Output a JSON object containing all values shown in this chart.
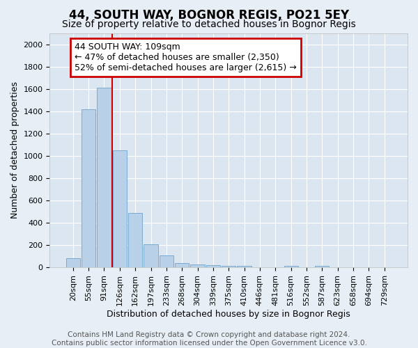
{
  "title1": "44, SOUTH WAY, BOGNOR REGIS, PO21 5EY",
  "title2": "Size of property relative to detached houses in Bognor Regis",
  "xlabel": "Distribution of detached houses by size in Bognor Regis",
  "ylabel": "Number of detached properties",
  "categories": [
    "20sqm",
    "55sqm",
    "91sqm",
    "126sqm",
    "162sqm",
    "197sqm",
    "233sqm",
    "268sqm",
    "304sqm",
    "339sqm",
    "375sqm",
    "410sqm",
    "446sqm",
    "481sqm",
    "516sqm",
    "552sqm",
    "587sqm",
    "623sqm",
    "658sqm",
    "694sqm",
    "729sqm"
  ],
  "values": [
    80,
    1415,
    1610,
    1050,
    490,
    205,
    105,
    40,
    25,
    18,
    10,
    10,
    0,
    0,
    10,
    0,
    10,
    0,
    0,
    0,
    0
  ],
  "bar_color": "#b8d0e8",
  "bar_edge_color": "#7aaacf",
  "vline_x": 2.5,
  "vline_color": "#cc0000",
  "annotation_box_text": "44 SOUTH WAY: 109sqm\n← 47% of detached houses are smaller (2,350)\n52% of semi-detached houses are larger (2,615) →",
  "annotation_box_color": "#cc0000",
  "ylim": [
    0,
    2100
  ],
  "yticks": [
    0,
    200,
    400,
    600,
    800,
    1000,
    1200,
    1400,
    1600,
    1800,
    2000
  ],
  "bg_color": "#e8eef5",
  "plot_bg_color": "#dce6f0",
  "grid_color": "#ffffff",
  "footer_text": "Contains HM Land Registry data © Crown copyright and database right 2024.\nContains public sector information licensed under the Open Government Licence v3.0.",
  "title1_fontsize": 12,
  "title2_fontsize": 10,
  "xlabel_fontsize": 9,
  "ylabel_fontsize": 9,
  "tick_fontsize": 8,
  "annotation_fontsize": 9,
  "footer_fontsize": 7.5
}
